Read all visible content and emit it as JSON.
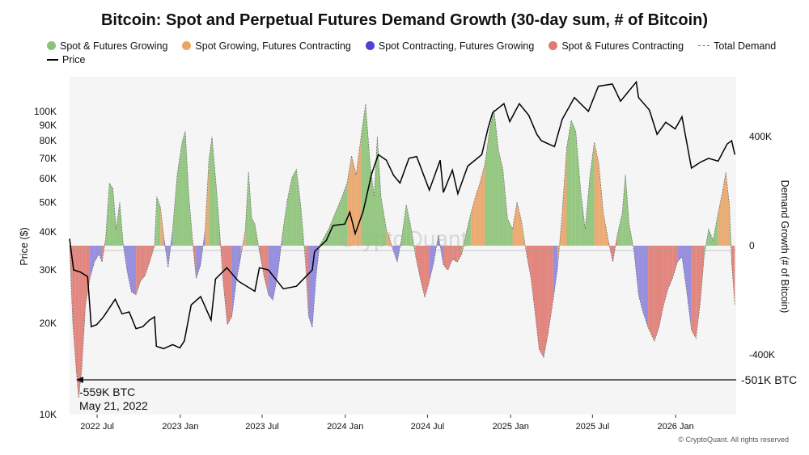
{
  "chart_data": {
    "type": "area",
    "title": "Bitcoin: Spot and Perpetual Futures Demand Growth (30-day sum, # of Bitcoin)",
    "ylabel_left": "Price ($)",
    "ylabel_right": "Demand Growth (# of Bitcoin)",
    "left_axis": {
      "scale": "log",
      "range": [
        10000,
        130000
      ],
      "ticks": [
        10000,
        20000,
        30000,
        40000,
        50000,
        60000,
        70000,
        80000,
        90000,
        100000
      ],
      "tick_labels": [
        "10K",
        "20K",
        "30K",
        "40K",
        "50K",
        "60K",
        "70K",
        "80K",
        "90K",
        "100K"
      ]
    },
    "right_axis": {
      "range": [
        -620000,
        620000
      ],
      "ticks": [
        -400000,
        0,
        400000
      ],
      "tick_labels": [
        "-400K",
        "0",
        "400K"
      ]
    },
    "x_axis": {
      "range": [
        "2022-05-01",
        "2026-05-15"
      ],
      "ticks": [
        "2022-07-01",
        "2023-01-01",
        "2023-07-01",
        "2024-01-01",
        "2024-07-01",
        "2025-01-01",
        "2025-07-01",
        "2026-01-01"
      ],
      "tick_labels": [
        "2022 Jul",
        "2023 Jan",
        "2023 Jul",
        "2024 Jan",
        "2024 Jul",
        "2025 Jan",
        "2025 Jul",
        "2026 Jan"
      ]
    },
    "grid": false,
    "legend": {
      "placement": "top",
      "entries": [
        {
          "label": "Spot & Futures Growing",
          "color": "#8cc277"
        },
        {
          "label": "Spot Growing, Futures Contracting",
          "color": "#e9a466"
        },
        {
          "label": "Spot Contracting, Futures Growing",
          "color": "#4e3fd6"
        },
        {
          "label": "Spot & Futures Contracting",
          "color": "#e07b73"
        },
        {
          "label": "Total Demand",
          "color": "#777777"
        },
        {
          "label": "Price",
          "color": "#000000"
        }
      ]
    },
    "price_series": {
      "name": "Price",
      "points": [
        [
          "2022-05-01",
          38000
        ],
        [
          "2022-05-10",
          30000
        ],
        [
          "2022-05-25",
          29500
        ],
        [
          "2022-06-10",
          28500
        ],
        [
          "2022-06-18",
          19500
        ],
        [
          "2022-06-30",
          19800
        ],
        [
          "2022-07-15",
          21000
        ],
        [
          "2022-08-10",
          24000
        ],
        [
          "2022-08-25",
          21500
        ],
        [
          "2022-09-10",
          21800
        ],
        [
          "2022-09-25",
          19200
        ],
        [
          "2022-10-10",
          19500
        ],
        [
          "2022-10-25",
          20500
        ],
        [
          "2022-11-05",
          21000
        ],
        [
          "2022-11-09",
          16800
        ],
        [
          "2022-11-25",
          16500
        ],
        [
          "2022-12-15",
          17000
        ],
        [
          "2022-12-31",
          16600
        ],
        [
          "2023-01-10",
          17500
        ],
        [
          "2023-01-25",
          23000
        ],
        [
          "2023-02-15",
          24500
        ],
        [
          "2023-03-10",
          20500
        ],
        [
          "2023-03-20",
          28000
        ],
        [
          "2023-04-14",
          30500
        ],
        [
          "2023-05-10",
          27500
        ],
        [
          "2023-06-15",
          25500
        ],
        [
          "2023-06-25",
          30500
        ],
        [
          "2023-07-15",
          30000
        ],
        [
          "2023-08-17",
          26000
        ],
        [
          "2023-09-15",
          26500
        ],
        [
          "2023-10-20",
          30000
        ],
        [
          "2023-10-25",
          34500
        ],
        [
          "2023-11-20",
          37500
        ],
        [
          "2023-12-05",
          42000
        ],
        [
          "2023-12-31",
          42500
        ],
        [
          "2024-01-11",
          46500
        ],
        [
          "2024-01-23",
          39500
        ],
        [
          "2024-02-10",
          47000
        ],
        [
          "2024-02-28",
          62000
        ],
        [
          "2024-03-14",
          72000
        ],
        [
          "2024-04-01",
          69000
        ],
        [
          "2024-04-17",
          61500
        ],
        [
          "2024-05-01",
          58000
        ],
        [
          "2024-05-21",
          70000
        ],
        [
          "2024-06-07",
          71000
        ],
        [
          "2024-07-05",
          55000
        ],
        [
          "2024-07-29",
          69000
        ],
        [
          "2024-08-05",
          54000
        ],
        [
          "2024-08-25",
          64000
        ],
        [
          "2024-09-06",
          53500
        ],
        [
          "2024-09-28",
          66000
        ],
        [
          "2024-10-29",
          72000
        ],
        [
          "2024-11-12",
          88000
        ],
        [
          "2024-11-22",
          99000
        ],
        [
          "2024-12-17",
          106000
        ],
        [
          "2024-12-30",
          92500
        ],
        [
          "2025-01-20",
          106000
        ],
        [
          "2025-02-10",
          97000
        ],
        [
          "2025-02-28",
          84000
        ],
        [
          "2025-03-10",
          80000
        ],
        [
          "2025-04-08",
          76500
        ],
        [
          "2025-04-25",
          94000
        ],
        [
          "2025-05-22",
          111000
        ],
        [
          "2025-06-22",
          100000
        ],
        [
          "2025-07-14",
          121000
        ],
        [
          "2025-08-14",
          123000
        ],
        [
          "2025-09-01",
          108000
        ],
        [
          "2025-10-06",
          125000
        ],
        [
          "2025-10-11",
          111000
        ],
        [
          "2025-11-04",
          101000
        ],
        [
          "2025-11-21",
          84000
        ],
        [
          "2025-12-10",
          92000
        ],
        [
          "2025-12-31",
          87500
        ],
        [
          "2026-01-15",
          96000
        ],
        [
          "2026-02-05",
          65000
        ],
        [
          "2026-02-25",
          68000
        ],
        [
          "2026-03-15",
          70000
        ],
        [
          "2026-04-05",
          68500
        ],
        [
          "2026-04-25",
          78000
        ],
        [
          "2026-05-05",
          80000
        ],
        [
          "2026-05-12",
          72000
        ]
      ]
    },
    "demand_series": {
      "name": "Total Demand",
      "unit": "BTC",
      "points": [
        [
          "2022-05-01",
          0
        ],
        [
          "2022-05-08",
          -280000
        ],
        [
          "2022-05-15",
          -440000
        ],
        [
          "2022-05-21",
          -559000
        ],
        [
          "2022-05-28",
          -450000
        ],
        [
          "2022-06-05",
          -220000
        ],
        [
          "2022-06-15",
          -120000
        ],
        [
          "2022-06-25",
          -60000
        ],
        [
          "2022-07-05",
          -30000
        ],
        [
          "2022-07-12",
          -60000
        ],
        [
          "2022-07-20",
          30000
        ],
        [
          "2022-07-28",
          230000
        ],
        [
          "2022-08-05",
          210000
        ],
        [
          "2022-08-12",
          60000
        ],
        [
          "2022-08-20",
          160000
        ],
        [
          "2022-08-28",
          0
        ],
        [
          "2022-09-05",
          -90000
        ],
        [
          "2022-09-15",
          -170000
        ],
        [
          "2022-09-25",
          -180000
        ],
        [
          "2022-10-05",
          -130000
        ],
        [
          "2022-10-15",
          -110000
        ],
        [
          "2022-10-25",
          -60000
        ],
        [
          "2022-11-05",
          0
        ],
        [
          "2022-11-10",
          180000
        ],
        [
          "2022-11-18",
          140000
        ],
        [
          "2022-11-25",
          40000
        ],
        [
          "2022-12-05",
          -80000
        ],
        [
          "2022-12-15",
          60000
        ],
        [
          "2022-12-25",
          260000
        ],
        [
          "2023-01-05",
          380000
        ],
        [
          "2023-01-12",
          420000
        ],
        [
          "2023-01-20",
          180000
        ],
        [
          "2023-01-28",
          20000
        ],
        [
          "2023-02-05",
          -120000
        ],
        [
          "2023-02-15",
          -70000
        ],
        [
          "2023-02-25",
          60000
        ],
        [
          "2023-03-05",
          310000
        ],
        [
          "2023-03-12",
          400000
        ],
        [
          "2023-03-20",
          250000
        ],
        [
          "2023-03-28",
          80000
        ],
        [
          "2023-04-05",
          -120000
        ],
        [
          "2023-04-15",
          -290000
        ],
        [
          "2023-04-25",
          -260000
        ],
        [
          "2023-05-05",
          -130000
        ],
        [
          "2023-05-15",
          -40000
        ],
        [
          "2023-05-25",
          60000
        ],
        [
          "2023-06-01",
          270000
        ],
        [
          "2023-06-08",
          100000
        ],
        [
          "2023-06-15",
          80000
        ],
        [
          "2023-06-25",
          -20000
        ],
        [
          "2023-07-05",
          -110000
        ],
        [
          "2023-07-15",
          -180000
        ],
        [
          "2023-07-25",
          -200000
        ],
        [
          "2023-08-05",
          -100000
        ],
        [
          "2023-08-15",
          40000
        ],
        [
          "2023-08-25",
          160000
        ],
        [
          "2023-09-05",
          250000
        ],
        [
          "2023-09-15",
          280000
        ],
        [
          "2023-09-25",
          140000
        ],
        [
          "2023-10-05",
          -60000
        ],
        [
          "2023-10-12",
          -260000
        ],
        [
          "2023-10-20",
          -300000
        ],
        [
          "2023-10-28",
          -120000
        ],
        [
          "2023-11-05",
          0
        ],
        [
          "2023-11-15",
          30000
        ],
        [
          "2023-11-25",
          60000
        ],
        [
          "2023-12-05",
          100000
        ],
        [
          "2023-12-15",
          140000
        ],
        [
          "2023-12-25",
          180000
        ],
        [
          "2024-01-05",
          230000
        ],
        [
          "2024-01-15",
          330000
        ],
        [
          "2024-01-25",
          260000
        ],
        [
          "2024-02-05",
          400000
        ],
        [
          "2024-02-15",
          520000
        ],
        [
          "2024-02-25",
          300000
        ],
        [
          "2024-03-05",
          180000
        ],
        [
          "2024-03-12",
          400000
        ],
        [
          "2024-03-20",
          180000
        ],
        [
          "2024-04-01",
          60000
        ],
        [
          "2024-04-15",
          -10000
        ],
        [
          "2024-04-25",
          -60000
        ],
        [
          "2024-05-05",
          30000
        ],
        [
          "2024-05-15",
          150000
        ],
        [
          "2024-05-25",
          70000
        ],
        [
          "2024-06-05",
          -40000
        ],
        [
          "2024-06-15",
          -120000
        ],
        [
          "2024-06-25",
          -190000
        ],
        [
          "2024-07-05",
          -130000
        ],
        [
          "2024-07-15",
          -60000
        ],
        [
          "2024-07-25",
          40000
        ],
        [
          "2024-08-05",
          -70000
        ],
        [
          "2024-08-15",
          -90000
        ],
        [
          "2024-08-25",
          -50000
        ],
        [
          "2024-09-05",
          -60000
        ],
        [
          "2024-09-15",
          -30000
        ],
        [
          "2024-09-25",
          50000
        ],
        [
          "2024-10-05",
          120000
        ],
        [
          "2024-10-15",
          180000
        ],
        [
          "2024-10-25",
          230000
        ],
        [
          "2024-11-05",
          300000
        ],
        [
          "2024-11-15",
          420000
        ],
        [
          "2024-11-25",
          500000
        ],
        [
          "2024-12-05",
          350000
        ],
        [
          "2024-12-15",
          280000
        ],
        [
          "2024-12-25",
          100000
        ],
        [
          "2025-01-05",
          60000
        ],
        [
          "2025-01-15",
          160000
        ],
        [
          "2025-01-25",
          90000
        ],
        [
          "2025-02-05",
          -30000
        ],
        [
          "2025-02-15",
          -120000
        ],
        [
          "2025-02-25",
          -260000
        ],
        [
          "2025-03-05",
          -380000
        ],
        [
          "2025-03-15",
          -410000
        ],
        [
          "2025-03-25",
          -320000
        ],
        [
          "2025-04-05",
          -200000
        ],
        [
          "2025-04-15",
          -80000
        ],
        [
          "2025-04-25",
          120000
        ],
        [
          "2025-05-05",
          360000
        ],
        [
          "2025-05-15",
          460000
        ],
        [
          "2025-05-25",
          420000
        ],
        [
          "2025-06-05",
          200000
        ],
        [
          "2025-06-15",
          60000
        ],
        [
          "2025-06-25",
          250000
        ],
        [
          "2025-07-05",
          380000
        ],
        [
          "2025-07-15",
          300000
        ],
        [
          "2025-07-25",
          120000
        ],
        [
          "2025-08-05",
          20000
        ],
        [
          "2025-08-15",
          -60000
        ],
        [
          "2025-08-25",
          40000
        ],
        [
          "2025-09-05",
          120000
        ],
        [
          "2025-09-12",
          260000
        ],
        [
          "2025-09-20",
          80000
        ],
        [
          "2025-10-01",
          -20000
        ],
        [
          "2025-10-11",
          -180000
        ],
        [
          "2025-10-20",
          -240000
        ],
        [
          "2025-11-01",
          -300000
        ],
        [
          "2025-11-15",
          -350000
        ],
        [
          "2025-11-25",
          -300000
        ],
        [
          "2025-12-05",
          -220000
        ],
        [
          "2025-12-15",
          -160000
        ],
        [
          "2025-12-25",
          -120000
        ],
        [
          "2026-01-05",
          -60000
        ],
        [
          "2026-01-15",
          -40000
        ],
        [
          "2026-01-25",
          -160000
        ],
        [
          "2026-02-05",
          -310000
        ],
        [
          "2026-02-15",
          -340000
        ],
        [
          "2026-02-25",
          -200000
        ],
        [
          "2026-03-05",
          -40000
        ],
        [
          "2026-03-15",
          60000
        ],
        [
          "2026-03-25",
          20000
        ],
        [
          "2026-04-05",
          120000
        ],
        [
          "2026-04-15",
          200000
        ],
        [
          "2026-04-22",
          270000
        ],
        [
          "2026-04-30",
          150000
        ],
        [
          "2026-05-05",
          -60000
        ],
        [
          "2026-05-12",
          -220000
        ]
      ]
    },
    "regime_colors": {
      "positive_main": "#8cc277",
      "positive_alt": "#e9a466",
      "negative_main": "#e07b73",
      "negative_alt": "#8d84dd"
    },
    "annotations": [
      {
        "text": "-559K BTC",
        "date": "May 21, 2022"
      },
      {
        "text": "-501K BTC"
      }
    ]
  },
  "copyright": "© CryptoQuant. All rights reserved",
  "watermark": "CryptoQuant"
}
